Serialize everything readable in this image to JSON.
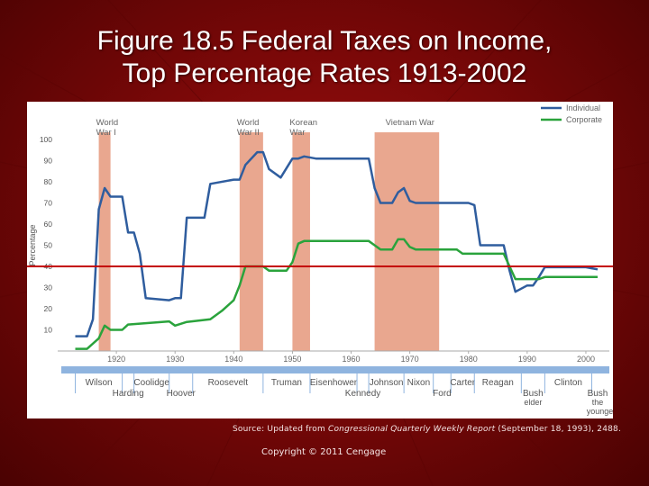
{
  "slide": {
    "title_line1": "Figure 18.5  Federal Taxes on Income,",
    "title_line2": "Top Percentage Rates 1913-2002",
    "source_prefix": "Source: Updated from ",
    "source_journal": "Congressional Quarterly Weekly Report",
    "source_suffix": " (September 18, 1993), 2488.",
    "copyright": "Copyright © 2011 Cengage"
  },
  "chart_data": {
    "type": "line",
    "title": "",
    "ylabel": "Percentage",
    "xlim": [
      1910,
      2004
    ],
    "ylim": [
      0,
      100
    ],
    "x_ticks": [
      1920,
      1930,
      1940,
      1950,
      1960,
      1970,
      1980,
      1990,
      2000
    ],
    "y_ticks": [
      10,
      20,
      30,
      40,
      50,
      60,
      70,
      80,
      90,
      100
    ],
    "legend": {
      "position": "top-right",
      "entries": [
        "Individual",
        "Corporate"
      ]
    },
    "reference_line": {
      "y": 40,
      "color": "#c40000"
    },
    "colors": {
      "individual": "#2f5d9e",
      "corporate": "#2aa33c",
      "war": "#e28a6a",
      "timeline": "#8fb4df"
    },
    "wars": [
      {
        "label1": "World",
        "label2": "War I",
        "start": 1917,
        "end": 1919
      },
      {
        "label1": "World",
        "label2": "War II",
        "start": 1941,
        "end": 1945
      },
      {
        "label1": "Korean",
        "label2": "War",
        "start": 1950,
        "end": 1953
      },
      {
        "label1": "Vietnam War",
        "label2": "",
        "start": 1964,
        "end": 1975
      }
    ],
    "series": [
      {
        "name": "Individual",
        "points": [
          [
            1913,
            7
          ],
          [
            1915,
            7
          ],
          [
            1916,
            15
          ],
          [
            1917,
            67
          ],
          [
            1918,
            77
          ],
          [
            1919,
            73
          ],
          [
            1921,
            73
          ],
          [
            1922,
            56
          ],
          [
            1923,
            56
          ],
          [
            1924,
            46
          ],
          [
            1925,
            25
          ],
          [
            1929,
            24
          ],
          [
            1930,
            25
          ],
          [
            1931,
            25
          ],
          [
            1932,
            63
          ],
          [
            1935,
            63
          ],
          [
            1936,
            79
          ],
          [
            1940,
            81
          ],
          [
            1941,
            81
          ],
          [
            1942,
            88
          ],
          [
            1944,
            94
          ],
          [
            1945,
            94
          ],
          [
            1946,
            86
          ],
          [
            1948,
            82
          ],
          [
            1950,
            91
          ],
          [
            1951,
            91
          ],
          [
            1952,
            92
          ],
          [
            1954,
            91
          ],
          [
            1963,
            91
          ],
          [
            1964,
            77
          ],
          [
            1965,
            70
          ],
          [
            1967,
            70
          ],
          [
            1968,
            75
          ],
          [
            1969,
            77
          ],
          [
            1970,
            71
          ],
          [
            1971,
            70
          ],
          [
            1980,
            70
          ],
          [
            1981,
            69
          ],
          [
            1982,
            50
          ],
          [
            1986,
            50
          ],
          [
            1987,
            38
          ],
          [
            1988,
            28
          ],
          [
            1990,
            31
          ],
          [
            1991,
            31
          ],
          [
            1992,
            35
          ],
          [
            1993,
            39.6
          ],
          [
            2000,
            39.6
          ],
          [
            2001,
            39.1
          ],
          [
            2002,
            38.6
          ]
        ]
      },
      {
        "name": "Corporate",
        "points": [
          [
            1913,
            1
          ],
          [
            1915,
            1
          ],
          [
            1917,
            6
          ],
          [
            1918,
            12
          ],
          [
            1919,
            10
          ],
          [
            1921,
            10
          ],
          [
            1922,
            12.5
          ],
          [
            1929,
            14
          ],
          [
            1930,
            12
          ],
          [
            1932,
            13.75
          ],
          [
            1936,
            15
          ],
          [
            1938,
            19
          ],
          [
            1940,
            24
          ],
          [
            1941,
            31
          ],
          [
            1942,
            40
          ],
          [
            1945,
            40
          ],
          [
            1946,
            38
          ],
          [
            1949,
            38
          ],
          [
            1950,
            42
          ],
          [
            1951,
            50.75
          ],
          [
            1952,
            52
          ],
          [
            1963,
            52
          ],
          [
            1964,
            50
          ],
          [
            1965,
            48
          ],
          [
            1967,
            48
          ],
          [
            1968,
            52.8
          ],
          [
            1969,
            52.8
          ],
          [
            1970,
            49.2
          ],
          [
            1971,
            48
          ],
          [
            1978,
            48
          ],
          [
            1979,
            46
          ],
          [
            1986,
            46
          ],
          [
            1987,
            40
          ],
          [
            1988,
            34
          ],
          [
            1992,
            34
          ],
          [
            1993,
            35
          ],
          [
            2002,
            35
          ]
        ]
      }
    ],
    "presidents_row1": [
      {
        "name": "Wilson",
        "start": 1913,
        "end": 1921
      },
      {
        "name": "Coolidge",
        "start": 1923,
        "end": 1929
      },
      {
        "name": "Roosevelt",
        "start": 1933,
        "end": 1945
      },
      {
        "name": "Truman",
        "start": 1945,
        "end": 1953
      },
      {
        "name": "Eisenhower",
        "start": 1953,
        "end": 1961
      },
      {
        "name": "Johnson",
        "start": 1963,
        "end": 1969
      },
      {
        "name": "Nixon",
        "start": 1969,
        "end": 1974
      },
      {
        "name": "Carter",
        "start": 1977,
        "end": 1981
      },
      {
        "name": "Reagan",
        "start": 1981,
        "end": 1989
      },
      {
        "name": "Clinton",
        "start": 1993,
        "end": 2001
      }
    ],
    "presidents_row2": [
      {
        "name": "Harding",
        "start": 1921,
        "end": 1923
      },
      {
        "name": "Hoover",
        "start": 1929,
        "end": 1933
      },
      {
        "name": "Kennedy",
        "start": 1961,
        "end": 1963
      },
      {
        "name": "Ford",
        "start": 1974,
        "end": 1977
      },
      {
        "name": "Bush",
        "name2": "elder",
        "start": 1989,
        "end": 1993
      },
      {
        "name": "Bush",
        "name2": "the",
        "name3": "younger",
        "start": 2001,
        "end": 2003
      }
    ]
  }
}
